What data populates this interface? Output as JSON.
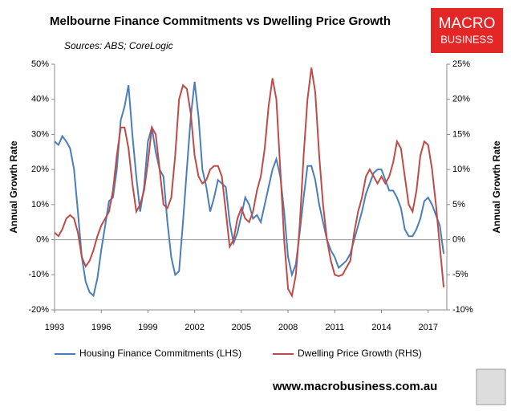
{
  "logo": {
    "line1": "MACRO",
    "line2": "BUSINESS"
  },
  "footer": "www.macrobusiness.com.au",
  "chart_data": {
    "type": "line",
    "title": "Melbourne Finance Commitments vs Dwelling Price Growth",
    "subtitle": "Sources: ABS; CoreLogic",
    "ylabel": "Annual Growth Rate",
    "y2label": "Annual Growth Rate",
    "x": [
      1993,
      1993.25,
      1993.5,
      1993.75,
      1994,
      1994.25,
      1994.5,
      1994.75,
      1995,
      1995.25,
      1995.5,
      1995.75,
      1996,
      1996.25,
      1996.5,
      1996.75,
      1997,
      1997.25,
      1997.5,
      1997.75,
      1998,
      1998.25,
      1998.5,
      1998.75,
      1999,
      1999.25,
      1999.5,
      1999.75,
      2000,
      2000.25,
      2000.5,
      2000.75,
      2001,
      2001.25,
      2001.5,
      2001.75,
      2002,
      2002.25,
      2002.5,
      2002.75,
      2003,
      2003.25,
      2003.5,
      2003.75,
      2004,
      2004.25,
      2004.5,
      2004.75,
      2005,
      2005.25,
      2005.5,
      2005.75,
      2006,
      2006.25,
      2006.5,
      2006.75,
      2007,
      2007.25,
      2007.5,
      2007.75,
      2008,
      2008.25,
      2008.5,
      2008.75,
      2009,
      2009.25,
      2009.5,
      2009.75,
      2010,
      2010.25,
      2010.5,
      2010.75,
      2011,
      2011.25,
      2011.5,
      2011.75,
      2012,
      2012.25,
      2012.5,
      2012.75,
      2013,
      2013.25,
      2013.5,
      2013.75,
      2014,
      2014.25,
      2014.5,
      2014.75,
      2015,
      2015.25,
      2015.5,
      2015.75,
      2016,
      2016.25,
      2016.5,
      2016.75,
      2017,
      2017.25,
      2017.5,
      2017.75,
      2018
    ],
    "series": [
      {
        "name": "Housing Finance Commitments (LHS)",
        "color": "#4a7ebb",
        "axis": "y",
        "values": [
          28,
          27,
          29.5,
          28,
          26,
          20,
          8,
          -5,
          -12,
          -15,
          -16,
          -11,
          -3,
          4,
          11,
          12,
          20,
          34,
          38,
          44,
          30,
          18,
          8,
          15,
          28,
          32,
          25,
          20,
          18,
          5,
          -5,
          -10,
          -9,
          5,
          20,
          35,
          45,
          35,
          20,
          15,
          8,
          12,
          17,
          16,
          15,
          5,
          -1,
          2,
          7,
          12,
          10,
          6,
          7,
          5,
          10,
          15,
          20,
          23,
          18,
          8,
          -5,
          -10,
          -7,
          2,
          12,
          21,
          21,
          17,
          10,
          5,
          0,
          -3,
          -5,
          -8,
          -7,
          -6,
          -4,
          0,
          4,
          8,
          13,
          16,
          19,
          20,
          20,
          17,
          14,
          14,
          12,
          9,
          3,
          1,
          1,
          3,
          6,
          11,
          12,
          10,
          7,
          4,
          -4
        ]
      },
      {
        "name": "Dwelling Price Growth (RHS)",
        "color": "#be4b48",
        "axis": "y2",
        "values": [
          1,
          0.5,
          1.5,
          3,
          3.5,
          3,
          1,
          -2.5,
          -3.8,
          -3,
          -1.5,
          0.5,
          2,
          3,
          4,
          7,
          12,
          16,
          16,
          13,
          8,
          4,
          5,
          7,
          11,
          16,
          15,
          10,
          5,
          4.5,
          6,
          12,
          20,
          22,
          21.5,
          18,
          12,
          9,
          8,
          8.5,
          10,
          10.5,
          10.5,
          9,
          4,
          -1,
          0,
          3,
          4.5,
          3,
          2.5,
          4,
          7,
          9,
          13,
          19,
          23,
          20,
          10,
          0,
          -7,
          -8,
          -5,
          2,
          12,
          20,
          24.5,
          21,
          12,
          5,
          0,
          -3,
          -5,
          -5.2,
          -5,
          -4,
          -3,
          1,
          4,
          6,
          9,
          10,
          9,
          8,
          9,
          8,
          9,
          11,
          14,
          13,
          9,
          5,
          4,
          7,
          12,
          14,
          13.5,
          10,
          5,
          -1,
          -6.8
        ]
      }
    ],
    "xlim": [
      1993,
      2018.2
    ],
    "xticks": [
      1993,
      1996,
      1999,
      2002,
      2005,
      2008,
      2011,
      2014,
      2017
    ],
    "ylim": [
      -20,
      50
    ],
    "yticks": [
      {
        "value": -20,
        "label": "-20%"
      },
      {
        "value": -10,
        "label": "-10%"
      },
      {
        "value": 0,
        "label": "0%"
      },
      {
        "value": 10,
        "label": "10%"
      },
      {
        "value": 20,
        "label": "20%"
      },
      {
        "value": 30,
        "label": "30%"
      },
      {
        "value": 40,
        "label": "40%"
      },
      {
        "value": 50,
        "label": "50%"
      }
    ],
    "y2lim": [
      -10,
      25
    ],
    "y2ticks": [
      {
        "value": -10,
        "label": "-10%"
      },
      {
        "value": -5,
        "label": "-5%"
      },
      {
        "value": 0,
        "label": "0%"
      },
      {
        "value": 5,
        "label": "5%"
      },
      {
        "value": 10,
        "label": "10%"
      },
      {
        "value": 15,
        "label": "15%"
      },
      {
        "value": 20,
        "label": "20%"
      },
      {
        "value": 25,
        "label": "25%"
      }
    ],
    "legend": "bottom"
  }
}
